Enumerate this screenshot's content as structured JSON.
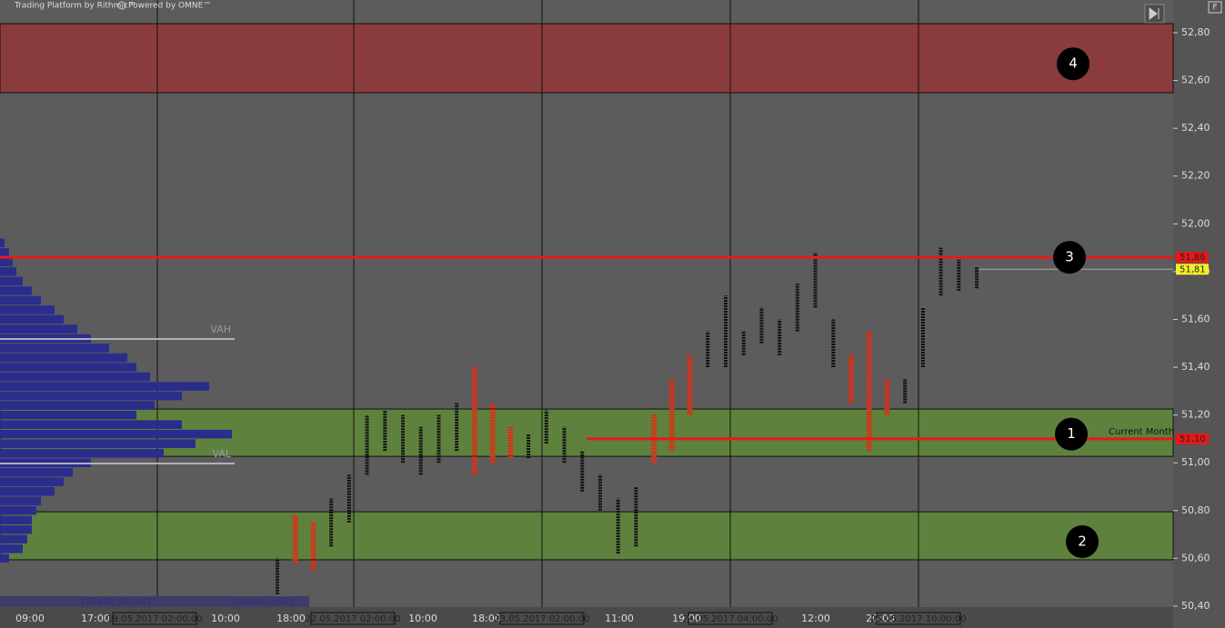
{
  "header": {
    "platform": "Trading Platform by Rithmic™",
    "powered": "Powered by OMNE™",
    "corner": "F"
  },
  "chart_data": {
    "type": "profile",
    "ylim": [
      50.396,
      52.937
    ],
    "yticks": [
      {
        "value": 50.4,
        "label": "50,40"
      },
      {
        "value": 50.6,
        "label": "50,60"
      },
      {
        "value": 50.8,
        "label": "50,80"
      },
      {
        "value": 51.0,
        "label": "51,00"
      },
      {
        "value": 51.2,
        "label": "51,20"
      },
      {
        "value": 51.4,
        "label": "51,40"
      },
      {
        "value": 51.6,
        "label": "51,60"
      },
      {
        "value": 51.8,
        "label": "51,80"
      },
      {
        "value": 52.0,
        "label": "52,00"
      },
      {
        "value": 52.2,
        "label": "52,20"
      },
      {
        "value": 52.4,
        "label": "52,40"
      },
      {
        "value": 52.6,
        "label": "52,60"
      },
      {
        "value": 52.8,
        "label": "52,80"
      }
    ],
    "categories": [
      "09:00",
      "17:00",
      "19.05.2017 02:00:00",
      "10:00",
      "18:00",
      "22.05.2017 02:00:00",
      "10:00",
      "18:00",
      "23.05.2017 02:00:00",
      "11:00",
      "19:00",
      "24.05.2017 04:00:00",
      "12:00",
      "20:00",
      "25.05.2017 10:00:00"
    ],
    "zones": [
      {
        "low": 52.549,
        "high": 52.838,
        "color": "#8a3b3b"
      },
      {
        "low": 51.027,
        "high": 51.225,
        "color": "#5e823d"
      },
      {
        "low": 50.594,
        "high": 50.795,
        "color": "#5e823d"
      }
    ],
    "markers": [
      {
        "label": "4",
        "price": 52.67
      },
      {
        "label": "3",
        "price": 51.86
      },
      {
        "label": "1",
        "price": 51.12
      },
      {
        "label": "2",
        "price": 50.67
      }
    ],
    "levels": [
      {
        "value": 51.86,
        "label": "51,86",
        "color": "#e81818"
      },
      {
        "value": 51.81,
        "label": "51,81",
        "color": "#f2ef2a"
      },
      {
        "value": 51.1,
        "label": "51,10",
        "color": "#e81818"
      }
    ],
    "value_area": [
      {
        "value": 51.518,
        "label": "VAH"
      },
      {
        "value": 50.997,
        "label": "VAL"
      }
    ],
    "level_note": "Current Month",
    "profile": {
      "color": "#2b2d8c",
      "prices": [
        51.92,
        51.88,
        51.84,
        51.8,
        51.76,
        51.72,
        51.68,
        51.64,
        51.6,
        51.56,
        51.52,
        51.48,
        51.44,
        51.4,
        51.36,
        51.32,
        51.28,
        51.24,
        51.2,
        51.16,
        51.12,
        51.08,
        51.04,
        51.0,
        50.96,
        50.92,
        50.88,
        50.84,
        50.8,
        50.76,
        50.72,
        50.68,
        50.64,
        50.6
      ],
      "values": [
        5,
        10,
        14,
        18,
        25,
        35,
        45,
        60,
        70,
        85,
        100,
        120,
        140,
        150,
        165,
        230,
        200,
        170,
        150,
        200,
        255,
        215,
        180,
        100,
        80,
        70,
        60,
        45,
        40,
        35,
        35,
        30,
        25,
        10
      ]
    },
    "totals": "767982 762427",
    "delta": "Delta=-5555",
    "bars": {
      "color": "#111111",
      "highlight": "#e82a12",
      "low": [
        50.45,
        50.58,
        50.55,
        50.65,
        50.75,
        50.95,
        51.05,
        51.0,
        50.95,
        51.0,
        51.05,
        50.95,
        51.0,
        51.02,
        51.02,
        51.08,
        51.0,
        50.88,
        50.8,
        50.62,
        50.65,
        51.0,
        51.05,
        51.2,
        51.4,
        51.4,
        51.45,
        51.5,
        51.45,
        51.55,
        51.65,
        51.4,
        51.25,
        51.05,
        51.2,
        51.25,
        51.4,
        51.7,
        51.72,
        51.73
      ],
      "high": [
        50.6,
        50.78,
        50.75,
        50.85,
        50.95,
        51.2,
        51.22,
        51.2,
        51.15,
        51.2,
        51.25,
        51.4,
        51.25,
        51.15,
        51.12,
        51.22,
        51.15,
        51.05,
        50.95,
        50.85,
        50.9,
        51.2,
        51.35,
        51.45,
        51.55,
        51.7,
        51.55,
        51.65,
        51.6,
        51.75,
        51.88,
        51.6,
        51.45,
        51.55,
        51.35,
        51.35,
        51.65,
        51.9,
        51.85,
        51.82
      ],
      "hot": [
        false,
        true,
        true,
        false,
        false,
        false,
        false,
        false,
        false,
        false,
        false,
        true,
        true,
        true,
        false,
        false,
        false,
        false,
        false,
        false,
        false,
        true,
        true,
        true,
        false,
        false,
        false,
        false,
        false,
        false,
        false,
        false,
        true,
        true,
        true,
        false,
        false,
        false,
        false,
        false
      ]
    }
  }
}
